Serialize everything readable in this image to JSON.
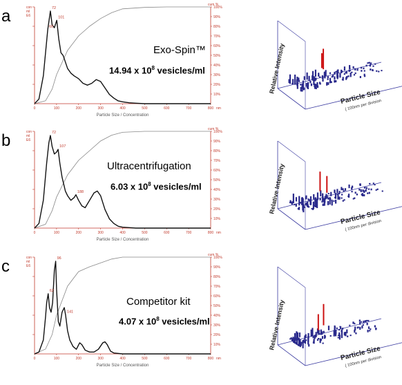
{
  "chart_data": [
    {
      "type": "line",
      "panel": "a",
      "method": "Exo-Spin™",
      "concentration_prefix": "14.94 x 10",
      "concentration_exp": "8",
      "concentration_suffix": " vesicles/ml",
      "xlabel": "Particle Size / Concentration",
      "x_unit": "nm",
      "xlim": [
        0,
        800
      ],
      "x_ticks": [
        "0",
        "100",
        "200",
        "300",
        "400",
        "500",
        "600",
        "700",
        "800"
      ],
      "left_axis_title": [
        "con",
        "ml",
        "E6"
      ],
      "right_axis_title": "cum %",
      "right_ticks": [
        "10%",
        "20%",
        "30%",
        "40%",
        "50%",
        "60%",
        "70%",
        "80%",
        "90%",
        "100%"
      ],
      "peak_labels": [
        {
          "x": 72,
          "text": "72"
        },
        {
          "x": 101,
          "text": "101"
        },
        {
          "x": 60,
          "text": "60"
        }
      ],
      "distribution": {
        "x": [
          0,
          20,
          40,
          50,
          60,
          66,
          72,
          80,
          90,
          101,
          110,
          120,
          130,
          140,
          150,
          165,
          180,
          200,
          220,
          240,
          260,
          280,
          300,
          320,
          340,
          360,
          380,
          400,
          430,
          460,
          500,
          600,
          800
        ],
        "y": [
          0,
          0.05,
          0.3,
          0.55,
          0.8,
          0.9,
          1.0,
          0.85,
          0.82,
          0.9,
          0.7,
          0.55,
          0.52,
          0.45,
          0.38,
          0.33,
          0.3,
          0.27,
          0.22,
          0.2,
          0.22,
          0.26,
          0.24,
          0.17,
          0.1,
          0.06,
          0.03,
          0.02,
          0.01,
          0.005,
          0,
          0,
          0
        ]
      },
      "cumulative": {
        "x": [
          0,
          50,
          80,
          100,
          150,
          200,
          250,
          300,
          350,
          400,
          500,
          600,
          800
        ],
        "y": [
          0,
          3,
          15,
          30,
          55,
          70,
          80,
          88,
          94,
          98,
          99.5,
          100,
          100
        ]
      }
    },
    {
      "type": "line",
      "panel": "b",
      "method": "Ultracentrifugation",
      "concentration_prefix": "6.03 x 10",
      "concentration_exp": "8",
      "concentration_suffix": " vesicles/ml",
      "xlabel": "Particle Size / Concentration",
      "x_unit": "nm",
      "xlim": [
        0,
        800
      ],
      "x_ticks": [
        "0",
        "100",
        "200",
        "300",
        "400",
        "500",
        "600",
        "700",
        "800"
      ],
      "left_axis_title": [
        "con",
        "ml",
        "E6"
      ],
      "right_axis_title": "cum %",
      "right_ticks": [
        "10%",
        "20%",
        "30%",
        "40%",
        "50%",
        "60%",
        "70%",
        "80%",
        "90%",
        "100%"
      ],
      "peak_labels": [
        {
          "x": 72,
          "text": "72"
        },
        {
          "x": 107,
          "text": "107"
        },
        {
          "x": 188,
          "text": "188"
        }
      ],
      "distribution": {
        "x": [
          0,
          20,
          40,
          55,
          65,
          72,
          80,
          90,
          100,
          107,
          115,
          125,
          140,
          150,
          165,
          180,
          188,
          200,
          215,
          230,
          250,
          270,
          285,
          300,
          320,
          340,
          360,
          380,
          400,
          430,
          460,
          500,
          800
        ],
        "y": [
          0,
          0.05,
          0.3,
          0.7,
          0.92,
          1.0,
          0.88,
          0.8,
          0.82,
          0.85,
          0.7,
          0.55,
          0.4,
          0.35,
          0.3,
          0.33,
          0.36,
          0.3,
          0.24,
          0.22,
          0.3,
          0.38,
          0.4,
          0.35,
          0.2,
          0.1,
          0.05,
          0.02,
          0.01,
          0.005,
          0,
          0,
          0
        ]
      },
      "cumulative": {
        "x": [
          0,
          50,
          80,
          100,
          150,
          200,
          250,
          300,
          350,
          400,
          500,
          600,
          800
        ],
        "y": [
          0,
          4,
          18,
          32,
          55,
          70,
          80,
          90,
          96,
          99,
          100,
          100,
          100
        ]
      }
    },
    {
      "type": "line",
      "panel": "c",
      "method": "Competitor kit",
      "concentration_prefix": "4.07 x 10",
      "concentration_exp": "8",
      "concentration_suffix": " vesicles/ml",
      "xlabel": "Particle Size / Concentration",
      "x_unit": "nm",
      "xlim": [
        0,
        800
      ],
      "x_ticks": [
        "0",
        "100",
        "200",
        "300",
        "400",
        "500",
        "600",
        "700",
        "800"
      ],
      "left_axis_title": [
        "con",
        "ml",
        "E6"
      ],
      "right_axis_title": "cum %",
      "right_ticks": [
        "10%",
        "20%",
        "30%",
        "40%",
        "50%",
        "60%",
        "70%",
        "80%",
        "90%",
        "100%"
      ],
      "peak_labels": [
        {
          "x": 96,
          "text": "96"
        },
        {
          "x": 62,
          "text": "62"
        },
        {
          "x": 141,
          "text": "141"
        }
      ],
      "distribution": {
        "x": [
          0,
          20,
          40,
          50,
          55,
          62,
          68,
          75,
          82,
          90,
          96,
          100,
          108,
          115,
          125,
          135,
          141,
          150,
          160,
          175,
          190,
          205,
          215,
          230,
          250,
          270,
          290,
          310,
          320,
          330,
          345,
          360,
          400,
          800
        ],
        "y": [
          0,
          0.02,
          0.15,
          0.4,
          0.55,
          0.65,
          0.5,
          0.45,
          0.55,
          0.9,
          1.0,
          0.7,
          0.35,
          0.3,
          0.45,
          0.5,
          0.42,
          0.25,
          0.15,
          0.08,
          0.05,
          0.12,
          0.1,
          0.04,
          0.02,
          0.02,
          0.05,
          0.12,
          0.13,
          0.1,
          0.03,
          0.01,
          0,
          0
        ]
      },
      "cumulative": {
        "x": [
          0,
          50,
          80,
          100,
          150,
          200,
          250,
          300,
          350,
          400,
          500,
          600,
          800
        ],
        "y": [
          0,
          5,
          20,
          40,
          70,
          85,
          90,
          94,
          98,
          100,
          100,
          100,
          100
        ]
      }
    }
  ],
  "scatter_3d": {
    "ylabel": "Relative Intensity",
    "xlabel": "Particle Size",
    "xlabel_sub": "( 100nm per division"
  }
}
